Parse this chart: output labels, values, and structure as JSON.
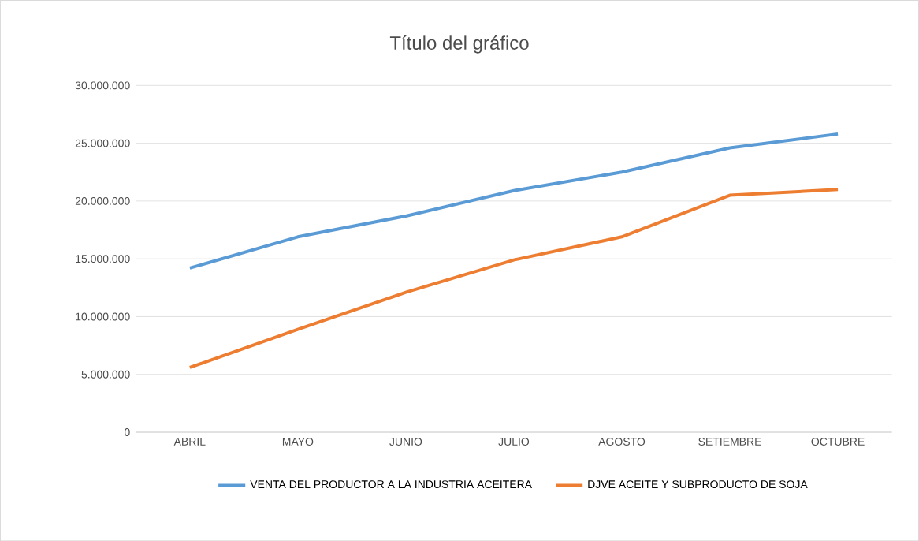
{
  "chart_data": {
    "type": "line",
    "title": "Título del gráfico",
    "categories": [
      "ABRIL",
      "MAYO",
      "JUNIO",
      "JULIO",
      "AGOSTO",
      "SETIEMBRE",
      "OCTUBRE"
    ],
    "series": [
      {
        "name": "VENTA DEL  PRODUCTOR A  LA INDUSTRIA ACEITERA",
        "color": "#5b9bd5",
        "values": [
          14200000,
          16900000,
          18700000,
          20900000,
          22500000,
          24600000,
          25800000
        ]
      },
      {
        "name": "DJVE ACEITE Y SUBPRODUCTO DE SOJA",
        "color": "#ed7d31",
        "values": [
          5600000,
          8900000,
          12100000,
          14900000,
          16900000,
          20500000,
          21000000
        ]
      }
    ],
    "ylim": [
      0,
      30000000
    ],
    "yticks": [
      0,
      {
        "value": 5000000,
        "label": "5.000.000"
      },
      {
        "value": 10000000,
        "label": "10.000.000"
      },
      {
        "value": 15000000,
        "label": "15.000.000"
      },
      {
        "value": 20000000,
        "label": "20.000.000"
      },
      {
        "value": 25000000,
        "label": "25.000.000"
      },
      {
        "value": 30000000,
        "label": "30.000.000"
      }
    ],
    "grid": "y",
    "legend": "bottom",
    "marker": "none",
    "line_style": "solid"
  }
}
